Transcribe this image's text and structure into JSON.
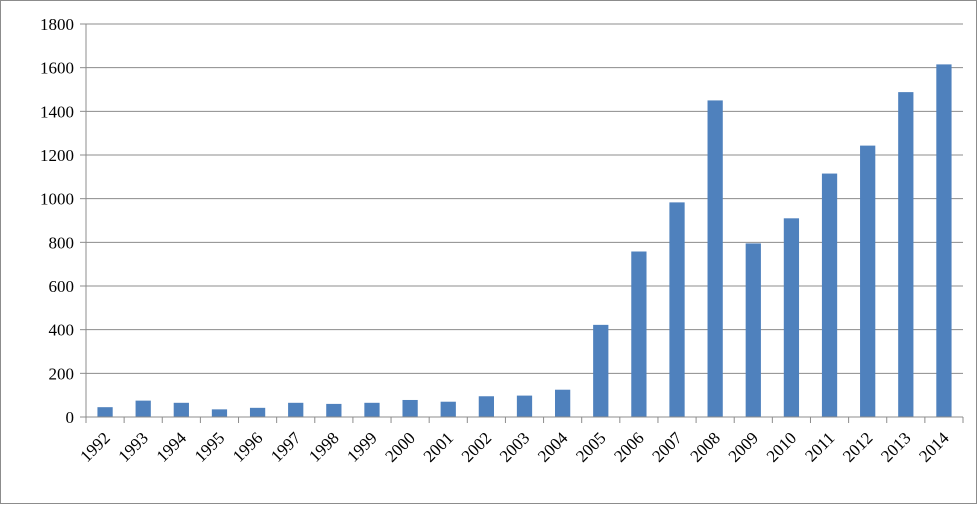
{
  "chart_data": {
    "type": "bar",
    "title": "",
    "xlabel": "",
    "ylabel": "",
    "categories": [
      "1992",
      "1993",
      "1994",
      "1995",
      "1996",
      "1997",
      "1998",
      "1999",
      "2000",
      "2001",
      "2002",
      "2003",
      "2004",
      "2005",
      "2006",
      "2007",
      "2008",
      "2009",
      "2010",
      "2011",
      "2012",
      "2013",
      "2014"
    ],
    "values": [
      45,
      75,
      65,
      35,
      42,
      65,
      60,
      65,
      78,
      70,
      95,
      98,
      125,
      422,
      758,
      983,
      1450,
      795,
      910,
      1115,
      1243,
      1488,
      1615
    ],
    "ylim": [
      0,
      1800
    ],
    "yticks": [
      0,
      200,
      400,
      600,
      800,
      1000,
      1200,
      1400,
      1600,
      1800
    ],
    "grid": true,
    "legend": "none",
    "bar_color": "#4f81bd",
    "grid_color": "#8c8c8c"
  }
}
